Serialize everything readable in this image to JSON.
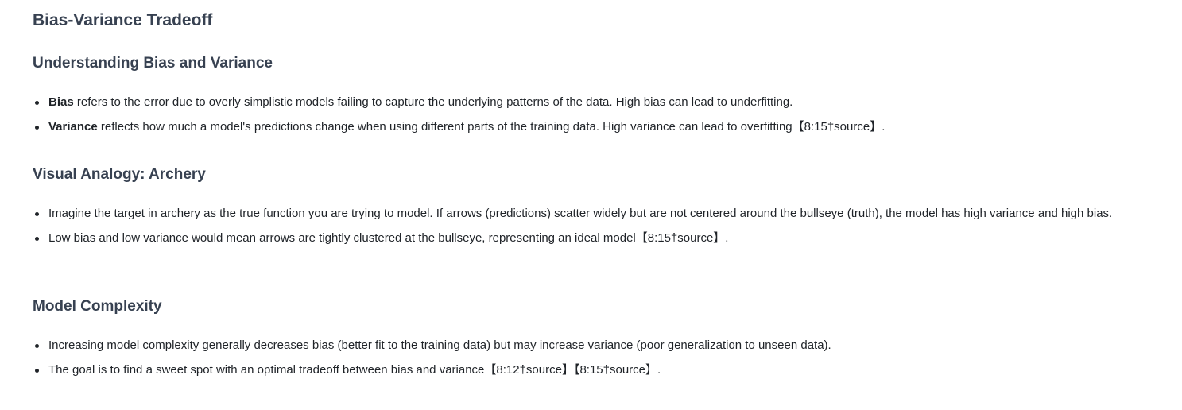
{
  "title": "Bias-Variance Tradeoff",
  "sections": [
    {
      "heading": "Understanding Bias and Variance",
      "items": [
        {
          "bold": "Bias",
          "text": " refers to the error due to overly simplistic models failing to capture the underlying patterns of the data. High bias can lead to underfitting."
        },
        {
          "bold": "Variance",
          "text": " reflects how much a model's predictions change when using different parts of the training data. High variance can lead to overfitting【8:15†source】."
        }
      ]
    },
    {
      "heading": "Visual Analogy: Archery",
      "items": [
        {
          "text": "Imagine the target in archery as the true function you are trying to model. If arrows (predictions) scatter widely but are not centered around the bullseye (truth), the model has high variance and high bias."
        },
        {
          "text": "Low bias and low variance would mean arrows are tightly clustered at the bullseye, representing an ideal model【8:15†source】."
        }
      ]
    },
    {
      "heading": "Model Complexity",
      "items": [
        {
          "text": "Increasing model complexity generally decreases bias (better fit to the training data) but may increase variance (poor generalization to unseen data)."
        },
        {
          "text": "The goal is to find a sweet spot with an optimal tradeoff between bias and variance【8:12†source】【8:15†source】."
        }
      ]
    }
  ]
}
